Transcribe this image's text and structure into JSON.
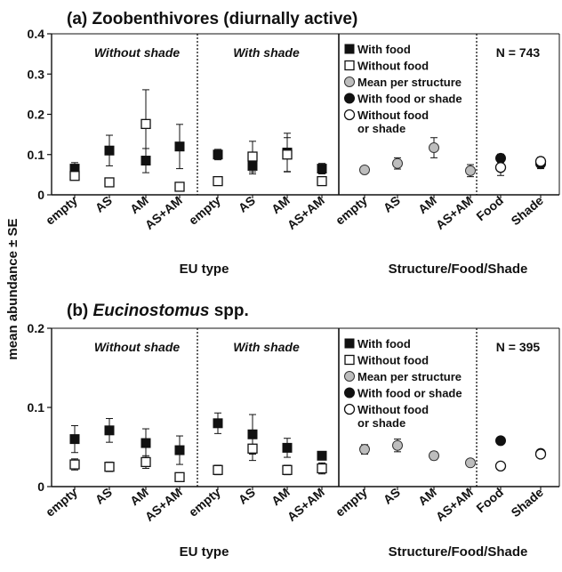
{
  "ylabel": "mean abundance ± SE",
  "legend": [
    {
      "label": "With food",
      "marker": "filled-square"
    },
    {
      "label": "Without food",
      "marker": "open-square"
    },
    {
      "label": "Mean per structure",
      "marker": "gray-circle"
    },
    {
      "label": "With food or shade",
      "marker": "filled-circle"
    },
    {
      "label": "Without food",
      "label2": "or shade",
      "marker": "open-circle"
    }
  ],
  "chart_data": [
    {
      "type": "scatter",
      "title_prefix": "(a)",
      "title": "Zoobenthivores (diurnally active)",
      "title_italic": false,
      "ylim": [
        0,
        0.4
      ],
      "yticks": [
        "0",
        "0.1",
        "0.2",
        "0.3",
        "0.4"
      ],
      "n_label": "N = 743",
      "sections": [
        "Without shade",
        "With shade"
      ],
      "categories": [
        "empty",
        "AS",
        "AM",
        "AS+AM",
        "empty",
        "AS",
        "AM",
        "AS+AM",
        "empty",
        "AS",
        "AM",
        "AS+AM",
        "Food",
        "Shade"
      ],
      "xlabel_eu": "EU type",
      "xlabel_sfs": "Structure/Food/Shade",
      "series": [
        {
          "name": "With food",
          "marker": "filled-square",
          "values": [
            0.065,
            0.11,
            0.085,
            0.12,
            0.1,
            0.072,
            0.105,
            0.065
          ],
          "errors": [
            0.015,
            0.038,
            0.03,
            0.055,
            0.013,
            0.02,
            0.048,
            0.013
          ]
        },
        {
          "name": "Without food",
          "marker": "open-square",
          "values": [
            0.047,
            0.031,
            0.176,
            0.02,
            0.034,
            0.095,
            0.1,
            0.034
          ],
          "errors": [
            0.01,
            0.008,
            0.085,
            0.005,
            0.01,
            0.038,
            0.042,
            0.01
          ]
        },
        {
          "name": "Mean per structure",
          "marker": "gray-circle",
          "values": [
            0.062,
            0.078,
            0.117,
            0.06
          ],
          "errors": [
            0.006,
            0.014,
            0.025,
            0.015
          ]
        },
        {
          "name": "With food or shade",
          "marker": "filled-circle",
          "values": [
            0.091,
            0.077
          ],
          "errors": [
            0.01,
            0.012
          ]
        },
        {
          "name": "Without food or shade",
          "marker": "open-circle",
          "values": [
            0.068,
            0.083
          ],
          "errors": [
            0.02,
            0.01
          ]
        }
      ]
    },
    {
      "type": "scatter",
      "title_prefix": "(b)",
      "title": "Eucinostomus",
      "title_suffix": "spp.",
      "title_italic": true,
      "ylim": [
        0,
        0.2
      ],
      "yticks": [
        "0",
        "0.1",
        "0.2"
      ],
      "n_label": "N = 395",
      "sections": [
        "Without shade",
        "With shade"
      ],
      "categories": [
        "empty",
        "AS",
        "AM",
        "AS+AM",
        "empty",
        "AS",
        "AM",
        "AS+AM",
        "empty",
        "AS",
        "AM",
        "AS+AM",
        "Food",
        "Shade"
      ],
      "xlabel_eu": "EU type",
      "xlabel_sfs": "Structure/Food/Shade",
      "series": [
        {
          "name": "With food",
          "marker": "filled-square",
          "values": [
            0.06,
            0.071,
            0.055,
            0.046,
            0.08,
            0.066,
            0.049,
            0.039
          ],
          "errors": [
            0.017,
            0.015,
            0.018,
            0.018,
            0.013,
            0.025,
            0.012,
            0.004
          ]
        },
        {
          "name": "Without food",
          "marker": "open-square",
          "values": [
            0.028,
            0.025,
            0.031,
            0.012,
            0.021,
            0.048,
            0.021,
            0.023
          ],
          "errors": [
            0.007,
            0.006,
            0.008,
            0.004,
            0.006,
            0.015,
            0.006,
            0.007
          ]
        },
        {
          "name": "Mean per structure",
          "marker": "gray-circle",
          "values": [
            0.047,
            0.052,
            0.039,
            0.03
          ],
          "errors": [
            0.006,
            0.008,
            0.005,
            0.003
          ]
        },
        {
          "name": "With food or shade",
          "marker": "filled-circle",
          "values": [
            0.058,
            0.042
          ],
          "errors": [
            0.004,
            0.004
          ]
        },
        {
          "name": "Without food or shade",
          "marker": "open-circle",
          "values": [
            0.026,
            0.041
          ],
          "errors": [
            0.004,
            0.003
          ]
        }
      ]
    }
  ]
}
